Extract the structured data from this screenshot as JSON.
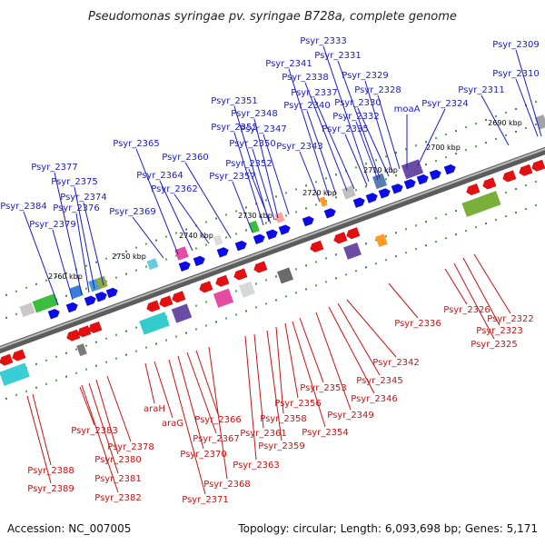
{
  "title": "Pseudomonas syringae pv. syringae B728a, complete genome",
  "footer": {
    "accession": "Accession: NC_007005",
    "summary": "Topology: circular; Length: 6,093,698 bp; Genes: 5,171"
  },
  "colors": {
    "forward_label": "#1a1acc",
    "reverse_label": "#cc1111",
    "backbone": "#888888"
  },
  "ticks": [
    "2690 kbp",
    "2700 kbp",
    "2710 kbp",
    "2720 kbp",
    "2730 kbp",
    "2740 kbp",
    "2750 kbp",
    "2760 kbp"
  ],
  "forward_labels": [
    "Psyr_2309",
    "Psyr_2310",
    "Psyr_2311",
    "Psyr_2324",
    "moaA",
    "Psyr_2328",
    "Psyr_2329",
    "Psyr_2330",
    "Psyr_2331",
    "Psyr_2332",
    "Psyr_2333",
    "Psyr_2335",
    "Psyr_2337",
    "Psyr_2338",
    "Psyr_2340",
    "Psyr_2341",
    "Psyr_2343",
    "Psyr_2347",
    "Psyr_2348",
    "Psyr_2350",
    "Psyr_2351",
    "Psyr_2352",
    "Psyr_2355",
    "Psyr_2357",
    "Psyr_2360",
    "Psyr_2362",
    "Psyr_2364",
    "Psyr_2365",
    "Psyr_2369",
    "Psyr_2374",
    "Psyr_2375",
    "Psyr_2376",
    "Psyr_2377",
    "Psyr_2379",
    "Psyr_2384"
  ],
  "reverse_labels": [
    "Psyr_2322",
    "Psyr_2323",
    "Psyr_2325",
    "Psyr_2326",
    "Psyr_2336",
    "Psyr_2342",
    "Psyr_2345",
    "Psyr_2346",
    "Psyr_2349",
    "Psyr_2353",
    "Psyr_2354",
    "Psyr_2356",
    "Psyr_2358",
    "Psyr_2359",
    "Psyr_2361",
    "Psyr_2363",
    "Psyr_2366",
    "Psyr_2367",
    "Psyr_2368",
    "Psyr_2370",
    "Psyr_2371",
    "araH",
    "araG",
    "Psyr_2378",
    "Psyr_2380",
    "Psyr_2381",
    "Psyr_2382",
    "Psyr_2383",
    "Psyr_2388",
    "Psyr_2389"
  ]
}
